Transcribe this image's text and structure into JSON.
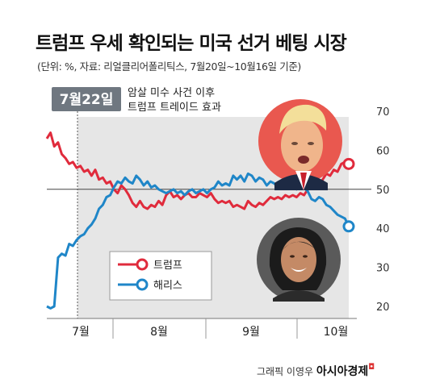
{
  "title": "트럼프 우세 확인되는 미국 선거 베팅 시장",
  "subtitle": "(단위: %, 자료: 리얼클리어폴리틱스, 7월20일~10월16일 기준)",
  "colors": {
    "trump": "#e02b3c",
    "harris": "#1f86c8",
    "shade": "#e6e6e6",
    "badge": "#6f7780"
  },
  "annotation": {
    "date": "7월22일",
    "line1": "암살 미수 사건 이후",
    "line2": "트럼프 트레이드 효과"
  },
  "credit": {
    "prefix": "그래픽 이영우",
    "brand": "아시아경제",
    "mark": "◘"
  },
  "chart_data": {
    "type": "line",
    "x_labels": [
      "7월",
      "8월",
      "9월",
      "10월"
    ],
    "ylim": [
      20,
      70
    ],
    "y_ticks": [
      "20",
      "30",
      "40",
      "50",
      "60",
      "70"
    ],
    "legend": [
      {
        "name": "트럼프"
      },
      {
        "name": "해리스"
      }
    ],
    "series": [
      {
        "name": "트럼프",
        "values": [
          63,
          64.5,
          61,
          62,
          59,
          58,
          56.5,
          57,
          55.5,
          56,
          54.5,
          55,
          53.5,
          55,
          52.5,
          53,
          51.5,
          52,
          50,
          49,
          51,
          50,
          48.5,
          46.5,
          45.5,
          47,
          45.5,
          45,
          46,
          45.5,
          47,
          46,
          48.5,
          49.5,
          48,
          48.5,
          47.5,
          48.5,
          49,
          48,
          48,
          49,
          48.5,
          48,
          49,
          47.5,
          46.5,
          47,
          46.5,
          47,
          45.5,
          46,
          45.5,
          45,
          47,
          46,
          45.5,
          46.5,
          46,
          47,
          48,
          47.5,
          48,
          47.5,
          48.5,
          48,
          48.5,
          48,
          49,
          48.5,
          50,
          52,
          51.5,
          51,
          52.5,
          54,
          53.5,
          55,
          54.5,
          56.5,
          57,
          56.5
        ]
      },
      {
        "name": "해리스",
        "values": [
          20,
          19.5,
          20,
          32.5,
          33.5,
          33,
          36,
          35.5,
          37,
          38,
          38.5,
          40,
          41,
          42.5,
          45,
          46,
          48,
          48.5,
          50.5,
          52,
          51.5,
          53,
          52,
          51.5,
          53.5,
          52.5,
          51,
          52,
          50.5,
          51,
          50,
          49.5,
          49,
          49.5,
          50,
          49,
          49.5,
          48.5,
          49.5,
          50,
          49,
          49.5,
          50,
          49,
          50,
          50.5,
          52,
          51,
          51.5,
          51,
          53.5,
          52.5,
          53.5,
          52,
          54,
          53.5,
          52,
          53,
          52.5,
          51,
          52,
          51.5,
          50.5,
          51,
          50.5,
          51.5,
          51,
          50,
          51,
          50.5,
          49.5,
          47.5,
          47,
          48,
          47.5,
          46,
          45.5,
          44.5,
          43.5,
          43,
          42.5,
          40.5
        ]
      }
    ]
  }
}
